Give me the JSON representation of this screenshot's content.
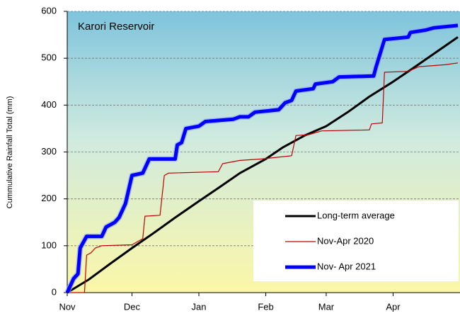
{
  "chart_data": {
    "type": "line",
    "title": "Karori Reservoir",
    "y_label": "Cummulative Rainfall Total (mm)",
    "xlim": [
      0,
      182
    ],
    "xticks": [
      {
        "value": 0,
        "label": "Nov"
      },
      {
        "value": 30,
        "label": "Dec"
      },
      {
        "value": 61,
        "label": "Jan"
      },
      {
        "value": 92,
        "label": "Feb"
      },
      {
        "value": 120,
        "label": "Mar"
      },
      {
        "value": 151,
        "label": "Apr"
      }
    ],
    "ylim": [
      0,
      600
    ],
    "yticks": [
      0,
      100,
      200,
      300,
      400,
      500,
      600
    ],
    "grid": true,
    "legend": "lower right",
    "series": [
      {
        "name": "Long-term average",
        "color": "#000000",
        "linewidth": 3,
        "x": [
          0,
          10,
          20,
          30,
          40,
          50,
          61,
          70,
          80,
          92,
          100,
          110,
          120,
          130,
          140,
          151,
          160,
          170,
          181
        ],
        "values": [
          0,
          28,
          62,
          95,
          127,
          160,
          195,
          223,
          255,
          285,
          310,
          335,
          355,
          385,
          418,
          450,
          478,
          510,
          545
        ]
      },
      {
        "name": "Nov-Apr 2020",
        "color": "#c00000",
        "linewidth": 1.2,
        "x": [
          0,
          8,
          9,
          11,
          13,
          16,
          30,
          35,
          36,
          43,
          45,
          47,
          70,
          72,
          80,
          90,
          100,
          104,
          106,
          112,
          118,
          140,
          141,
          146,
          147,
          158,
          163,
          175,
          181
        ],
        "values": [
          0,
          0,
          80,
          85,
          95,
          100,
          102,
          115,
          163,
          165,
          250,
          255,
          258,
          275,
          282,
          285,
          290,
          292,
          335,
          337,
          345,
          347,
          360,
          362,
          470,
          472,
          482,
          486,
          490
        ]
      },
      {
        "name": "Nov- Apr 2021",
        "color": "#0000ff",
        "linewidth": 5,
        "x": [
          0,
          3,
          5,
          6,
          9,
          16,
          18,
          22,
          24,
          27,
          30,
          35,
          38,
          50,
          51,
          53,
          55,
          61,
          64,
          77,
          80,
          84,
          87,
          98,
          101,
          104,
          106,
          114,
          115,
          123,
          126,
          142,
          143,
          147,
          158,
          159,
          166,
          170,
          181
        ],
        "values": [
          0,
          30,
          40,
          95,
          120,
          120,
          140,
          150,
          160,
          190,
          250,
          255,
          285,
          285,
          315,
          320,
          350,
          355,
          365,
          370,
          375,
          375,
          385,
          390,
          405,
          410,
          430,
          435,
          445,
          450,
          460,
          462,
          480,
          540,
          545,
          555,
          560,
          565,
          570
        ]
      }
    ]
  }
}
